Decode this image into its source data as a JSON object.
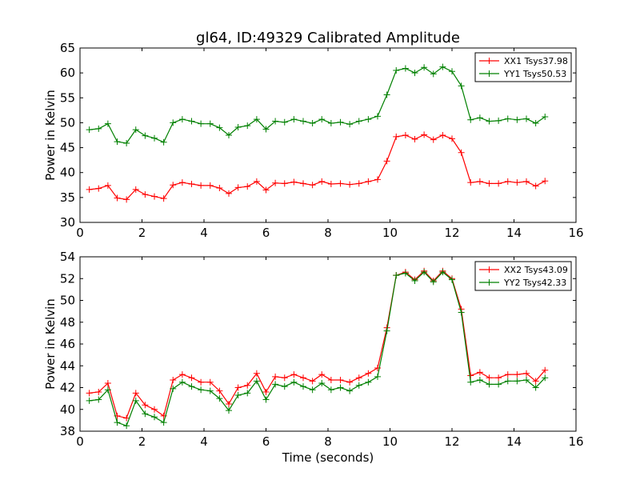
{
  "chart_data": {
    "title": "gl64, ID:49329 Calibrated Amplitude",
    "panels": [
      {
        "type": "line",
        "xlabel": "",
        "ylabel": "Power in Kelvin",
        "xlim": [
          0,
          16
        ],
        "ylim": [
          30,
          65
        ],
        "xticks": [
          0,
          2,
          4,
          6,
          8,
          10,
          12,
          14,
          16
        ],
        "yticks": [
          30,
          35,
          40,
          45,
          50,
          55,
          60,
          65
        ],
        "legend_position": "top-right",
        "series": [
          {
            "name": "XX1 Tsys37.98",
            "color": "#ff0000",
            "x": [
              0.3,
              0.6,
              0.9,
              1.2,
              1.5,
              1.8,
              2.1,
              2.4,
              2.7,
              3.0,
              3.3,
              3.6,
              3.9,
              4.2,
              4.5,
              4.8,
              5.1,
              5.4,
              5.7,
              6.0,
              6.3,
              6.6,
              6.9,
              7.2,
              7.5,
              7.8,
              8.1,
              8.4,
              8.7,
              9.0,
              9.3,
              9.6,
              9.9,
              10.2,
              10.5,
              10.8,
              11.1,
              11.4,
              11.7,
              12.0,
              12.3,
              12.6,
              12.9,
              13.2,
              13.5,
              13.8,
              14.1,
              14.4,
              14.7,
              15.0
            ],
            "y": [
              36.6,
              36.8,
              37.4,
              34.9,
              34.6,
              36.6,
              35.6,
              35.2,
              34.8,
              37.5,
              38.0,
              37.7,
              37.4,
              37.4,
              36.9,
              35.8,
              37.0,
              37.2,
              38.2,
              36.5,
              37.9,
              37.8,
              38.1,
              37.8,
              37.5,
              38.2,
              37.7,
              37.8,
              37.6,
              37.8,
              38.2,
              38.6,
              42.3,
              47.2,
              47.5,
              46.7,
              47.6,
              46.6,
              47.5,
              46.8,
              44.0,
              38.0,
              38.2,
              37.8,
              37.8,
              38.2,
              38.0,
              38.2,
              37.3,
              38.3
            ]
          },
          {
            "name": "YY1 Tsys50.53",
            "color": "#008000",
            "x": [
              0.3,
              0.6,
              0.9,
              1.2,
              1.5,
              1.8,
              2.1,
              2.4,
              2.7,
              3.0,
              3.3,
              3.6,
              3.9,
              4.2,
              4.5,
              4.8,
              5.1,
              5.4,
              5.7,
              6.0,
              6.3,
              6.6,
              6.9,
              7.2,
              7.5,
              7.8,
              8.1,
              8.4,
              8.7,
              9.0,
              9.3,
              9.6,
              9.9,
              10.2,
              10.5,
              10.8,
              11.1,
              11.4,
              11.7,
              12.0,
              12.3,
              12.6,
              12.9,
              13.2,
              13.5,
              13.8,
              14.1,
              14.4,
              14.7,
              15.0
            ],
            "y": [
              48.6,
              48.8,
              49.8,
              46.2,
              45.9,
              48.6,
              47.4,
              46.9,
              46.1,
              50.0,
              50.7,
              50.3,
              49.8,
              49.8,
              49.0,
              47.5,
              49.1,
              49.4,
              50.7,
              48.7,
              50.3,
              50.1,
              50.7,
              50.3,
              49.9,
              50.7,
              49.9,
              50.1,
              49.7,
              50.3,
              50.7,
              51.3,
              55.6,
              60.5,
              60.9,
              60.0,
              61.1,
              59.8,
              61.2,
              60.3,
              57.4,
              50.6,
              51.0,
              50.3,
              50.4,
              50.8,
              50.6,
              50.8,
              49.9,
              51.2
            ]
          }
        ]
      },
      {
        "type": "line",
        "xlabel": "Time (seconds)",
        "ylabel": "Power in Kelvin",
        "xlim": [
          0,
          16
        ],
        "ylim": [
          38,
          54
        ],
        "xticks": [
          0,
          2,
          4,
          6,
          8,
          10,
          12,
          14,
          16
        ],
        "yticks": [
          38,
          40,
          42,
          44,
          46,
          48,
          50,
          52,
          54
        ],
        "legend_position": "top-right",
        "series": [
          {
            "name": "XX2 Tsys43.09",
            "color": "#ff0000",
            "x": [
              0.3,
              0.6,
              0.9,
              1.2,
              1.5,
              1.8,
              2.1,
              2.4,
              2.7,
              3.0,
              3.3,
              3.6,
              3.9,
              4.2,
              4.5,
              4.8,
              5.1,
              5.4,
              5.7,
              6.0,
              6.3,
              6.6,
              6.9,
              7.2,
              7.5,
              7.8,
              8.1,
              8.4,
              8.7,
              9.0,
              9.3,
              9.6,
              9.9,
              10.2,
              10.5,
              10.8,
              11.1,
              11.4,
              11.7,
              12.0,
              12.3,
              12.6,
              12.9,
              13.2,
              13.5,
              13.8,
              14.1,
              14.4,
              14.7,
              15.0
            ],
            "y": [
              41.5,
              41.6,
              42.4,
              39.4,
              39.2,
              41.5,
              40.4,
              40.0,
              39.4,
              42.7,
              43.2,
              42.9,
              42.5,
              42.5,
              41.7,
              40.5,
              42.0,
              42.2,
              43.3,
              41.6,
              43.0,
              42.9,
              43.2,
              42.9,
              42.6,
              43.2,
              42.7,
              42.7,
              42.5,
              42.9,
              43.3,
              43.8,
              47.5,
              52.3,
              52.6,
              51.9,
              52.7,
              51.8,
              52.7,
              52.0,
              49.2,
              43.1,
              43.4,
              42.9,
              42.9,
              43.2,
              43.2,
              43.3,
              42.6,
              43.6
            ]
          },
          {
            "name": "YY2 Tsys42.33",
            "color": "#008000",
            "x": [
              0.3,
              0.6,
              0.9,
              1.2,
              1.5,
              1.8,
              2.1,
              2.4,
              2.7,
              3.0,
              3.3,
              3.6,
              3.9,
              4.2,
              4.5,
              4.8,
              5.1,
              5.4,
              5.7,
              6.0,
              6.3,
              6.6,
              6.9,
              7.2,
              7.5,
              7.8,
              8.1,
              8.4,
              8.7,
              9.0,
              9.3,
              9.6,
              9.9,
              10.2,
              10.5,
              10.8,
              11.1,
              11.4,
              11.7,
              12.0,
              12.3,
              12.6,
              12.9,
              13.2,
              13.5,
              13.8,
              14.1,
              14.4,
              14.7,
              15.0
            ],
            "y": [
              40.8,
              40.9,
              41.8,
              38.8,
              38.5,
              40.8,
              39.6,
              39.3,
              38.8,
              41.9,
              42.5,
              42.1,
              41.8,
              41.7,
              41.0,
              39.9,
              41.3,
              41.5,
              42.6,
              40.9,
              42.3,
              42.1,
              42.5,
              42.1,
              41.8,
              42.4,
              41.8,
              42.0,
              41.7,
              42.2,
              42.5,
              43.0,
              47.2,
              52.3,
              52.5,
              51.8,
              52.6,
              51.7,
              52.6,
              51.9,
              48.9,
              42.5,
              42.7,
              42.3,
              42.3,
              42.6,
              42.6,
              42.7,
              42.0,
              42.9
            ]
          }
        ]
      }
    ]
  }
}
